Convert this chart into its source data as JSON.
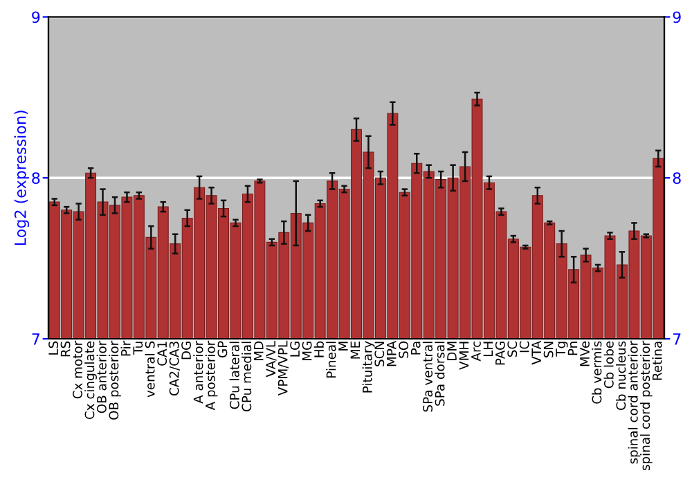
{
  "chart_data": {
    "type": "bar",
    "ylabel": "Log2 (expression)",
    "categories": [
      "LS",
      "RS",
      "Cx motor",
      "Cx cingulate",
      "OB anterior",
      "OB posterior",
      "Pir",
      "Tu",
      "ventral S",
      "CA1",
      "CA2/CA3",
      "DG",
      "A anterior",
      "A posterior",
      "GP",
      "CPu lateral",
      "CPu medial",
      "MD",
      "VA/VL",
      "VPM/VPL",
      "LG",
      "MG",
      "Hb",
      "Pineal",
      "M",
      "ME",
      "Pituitary",
      "SCN",
      "MPA",
      "SO",
      "Pa",
      "SPa ventral",
      "SPa dorsal",
      "DM",
      "VMH",
      "Arc",
      "LH",
      "PAG",
      "SC",
      "IC",
      "VTA",
      "SN",
      "Tg",
      "Pn",
      "MVe",
      "Cb vermis",
      "Cb lobe",
      "Cb nucleus",
      "spinal cord anterior",
      "spinal cord posterior",
      "Retina"
    ],
    "values": [
      7.85,
      7.8,
      7.79,
      8.03,
      7.85,
      7.83,
      7.88,
      7.89,
      7.63,
      7.82,
      7.59,
      7.75,
      7.94,
      7.89,
      7.81,
      7.72,
      7.9,
      7.98,
      7.6,
      7.66,
      7.78,
      7.72,
      7.84,
      7.98,
      7.93,
      8.3,
      8.16,
      8.0,
      8.4,
      7.91,
      8.09,
      8.04,
      7.99,
      8.0,
      8.07,
      8.49,
      7.97,
      7.79,
      7.62,
      7.57,
      7.89,
      7.72,
      7.59,
      7.43,
      7.52,
      7.44,
      7.64,
      7.46,
      7.67,
      7.64,
      8.12
    ],
    "errors": [
      0.02,
      0.02,
      0.05,
      0.03,
      0.08,
      0.05,
      0.03,
      0.02,
      0.07,
      0.03,
      0.06,
      0.05,
      0.07,
      0.05,
      0.05,
      0.02,
      0.05,
      0.01,
      0.02,
      0.07,
      0.2,
      0.05,
      0.02,
      0.05,
      0.02,
      0.07,
      0.1,
      0.04,
      0.07,
      0.02,
      0.06,
      0.04,
      0.05,
      0.08,
      0.09,
      0.04,
      0.04,
      0.02,
      0.02,
      0.01,
      0.05,
      0.01,
      0.08,
      0.08,
      0.04,
      0.02,
      0.02,
      0.08,
      0.05,
      0.01,
      0.05
    ],
    "color": "#b03232",
    "ylim": [
      7,
      9
    ],
    "yticks": [
      7,
      8,
      9
    ],
    "y2lim": [
      7,
      9
    ],
    "y2ticks": [
      7,
      8,
      9
    ],
    "grid": "y"
  }
}
